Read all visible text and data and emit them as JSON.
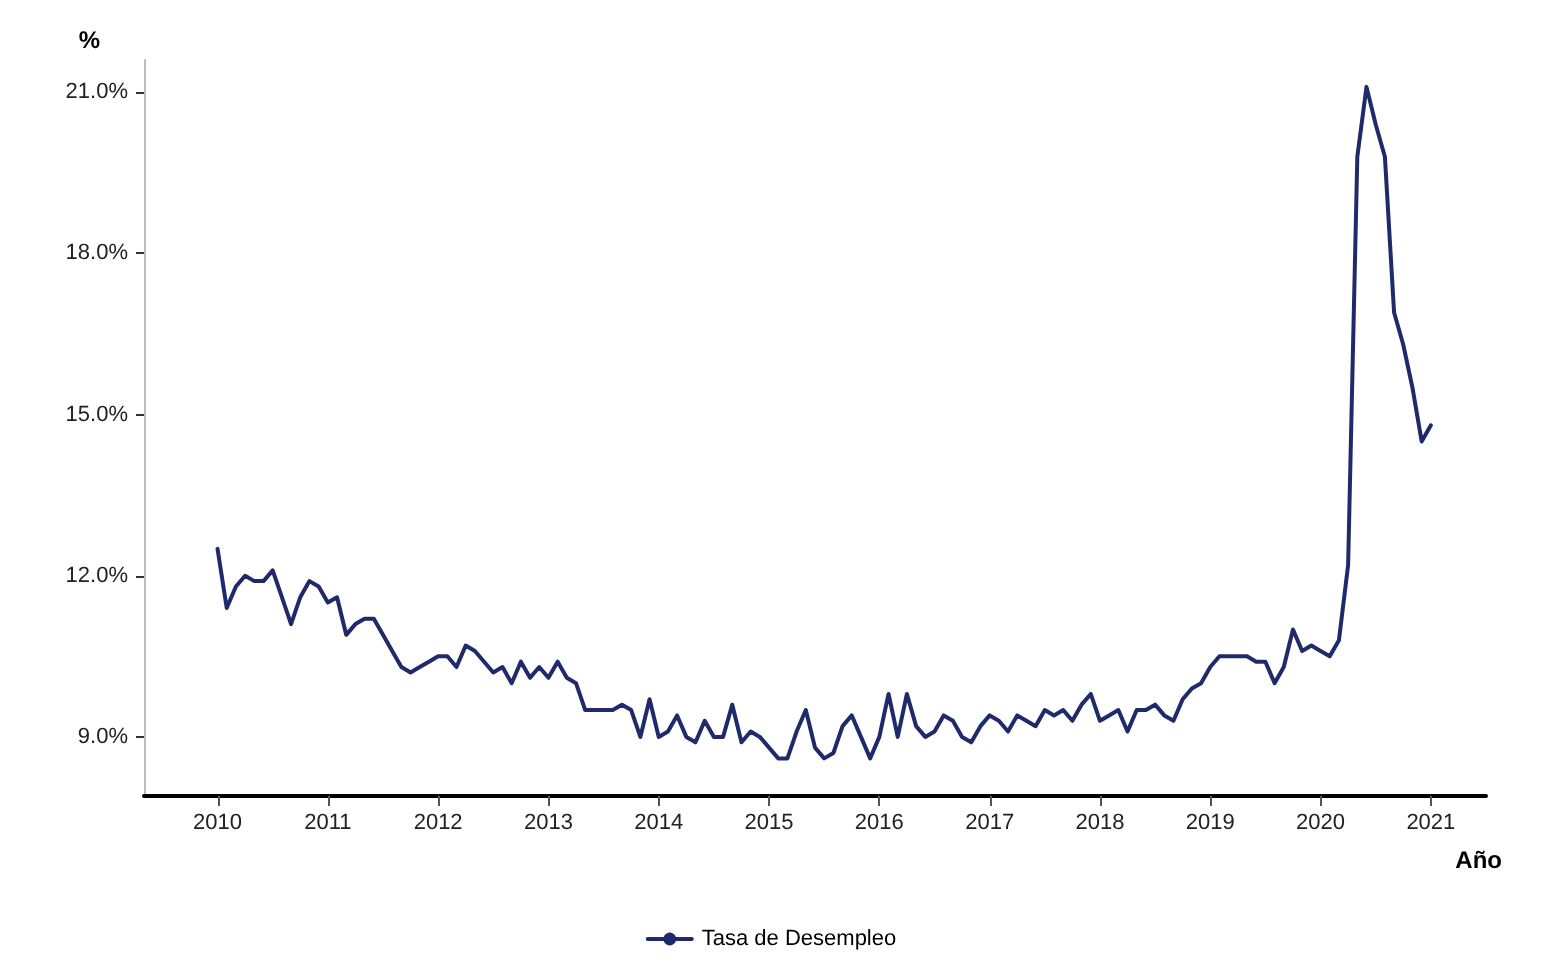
{
  "chart_data": {
    "type": "line",
    "xlabel": "Año",
    "ylabel": "%",
    "x": [
      "2010-01",
      "2010-02",
      "2010-03",
      "2010-04",
      "2010-05",
      "2010-06",
      "2010-07",
      "2010-08",
      "2010-09",
      "2010-10",
      "2010-11",
      "2010-12",
      "2011-01",
      "2011-02",
      "2011-03",
      "2011-04",
      "2011-05",
      "2011-06",
      "2011-07",
      "2011-08",
      "2011-09",
      "2011-10",
      "2011-11",
      "2011-12",
      "2012-01",
      "2012-02",
      "2012-03",
      "2012-04",
      "2012-05",
      "2012-06",
      "2012-07",
      "2012-08",
      "2012-09",
      "2012-10",
      "2012-11",
      "2012-12",
      "2013-01",
      "2013-02",
      "2013-03",
      "2013-04",
      "2013-05",
      "2013-06",
      "2013-07",
      "2013-08",
      "2013-09",
      "2013-10",
      "2013-11",
      "2013-12",
      "2014-01",
      "2014-02",
      "2014-03",
      "2014-04",
      "2014-05",
      "2014-06",
      "2014-07",
      "2014-08",
      "2014-09",
      "2014-10",
      "2014-11",
      "2014-12",
      "2015-01",
      "2015-02",
      "2015-03",
      "2015-04",
      "2015-05",
      "2015-06",
      "2015-07",
      "2015-08",
      "2015-09",
      "2015-10",
      "2015-11",
      "2015-12",
      "2016-01",
      "2016-02",
      "2016-03",
      "2016-04",
      "2016-05",
      "2016-06",
      "2016-07",
      "2016-08",
      "2016-09",
      "2016-10",
      "2016-11",
      "2016-12",
      "2017-01",
      "2017-02",
      "2017-03",
      "2017-04",
      "2017-05",
      "2017-06",
      "2017-07",
      "2017-08",
      "2017-09",
      "2017-10",
      "2017-11",
      "2017-12",
      "2018-01",
      "2018-02",
      "2018-03",
      "2018-04",
      "2018-05",
      "2018-06",
      "2018-07",
      "2018-08",
      "2018-09",
      "2018-10",
      "2018-11",
      "2018-12",
      "2019-01",
      "2019-02",
      "2019-03",
      "2019-04",
      "2019-05",
      "2019-06",
      "2019-07",
      "2019-08",
      "2019-09",
      "2019-10",
      "2019-11",
      "2019-12",
      "2020-01",
      "2020-02",
      "2020-03",
      "2020-04",
      "2020-05",
      "2020-06",
      "2020-07",
      "2020-08",
      "2020-09",
      "2020-10",
      "2020-11",
      "2020-12",
      "2021-01"
    ],
    "series": [
      {
        "name": "Tasa de Desempleo",
        "color": "#1f2a6b",
        "values": [
          12.5,
          11.4,
          11.8,
          12.0,
          11.9,
          11.9,
          12.1,
          11.6,
          11.1,
          11.6,
          11.9,
          11.8,
          11.5,
          11.6,
          10.9,
          11.1,
          11.2,
          11.2,
          10.9,
          10.6,
          10.3,
          10.2,
          10.3,
          10.4,
          10.5,
          10.5,
          10.3,
          10.7,
          10.6,
          10.4,
          10.2,
          10.3,
          10.0,
          10.4,
          10.1,
          10.3,
          10.1,
          10.4,
          10.1,
          10.0,
          9.5,
          9.5,
          9.5,
          9.5,
          9.6,
          9.5,
          9.0,
          9.7,
          9.0,
          9.1,
          9.4,
          9.0,
          8.9,
          9.3,
          9.0,
          9.0,
          9.6,
          8.9,
          9.1,
          9.0,
          8.8,
          8.6,
          8.6,
          9.1,
          9.5,
          8.8,
          8.6,
          8.7,
          9.2,
          9.4,
          9.0,
          8.6,
          9.0,
          9.8,
          9.0,
          9.8,
          9.2,
          9.0,
          9.1,
          9.4,
          9.3,
          9.0,
          8.9,
          9.2,
          9.4,
          9.3,
          9.1,
          9.4,
          9.3,
          9.2,
          9.5,
          9.4,
          9.5,
          9.3,
          9.6,
          9.8,
          9.3,
          9.4,
          9.5,
          9.1,
          9.5,
          9.5,
          9.6,
          9.4,
          9.3,
          9.7,
          9.9,
          10.0,
          10.3,
          10.5,
          10.5,
          10.5,
          10.5,
          10.4,
          10.4,
          10.0,
          10.3,
          11.0,
          10.6,
          10.7,
          10.6,
          10.5,
          10.8,
          12.2,
          19.8,
          21.1,
          20.4,
          19.8,
          16.9,
          16.3,
          15.5,
          14.5,
          14.8
        ]
      }
    ],
    "xlim": [
      "2009-05",
      "2021-07"
    ],
    "xticks": [
      "2010",
      "2011",
      "2012",
      "2013",
      "2014",
      "2015",
      "2016",
      "2017",
      "2018",
      "2019",
      "2020",
      "2021"
    ],
    "ylim": [
      7.9,
      21.6
    ],
    "yticks": [
      {
        "value": 9,
        "label": "9.0%"
      },
      {
        "value": 12,
        "label": "12.0%"
      },
      {
        "value": 15,
        "label": "15.0%"
      },
      {
        "value": 18,
        "label": "18.0%"
      },
      {
        "value": 21,
        "label": "21.0%"
      }
    ],
    "grid": false,
    "legend": "bottom",
    "line_style": "solid"
  }
}
